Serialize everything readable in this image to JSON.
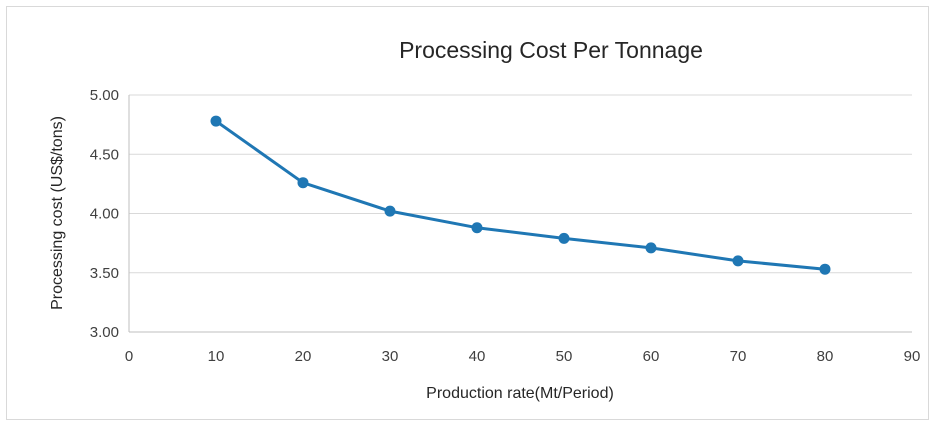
{
  "chart_data": {
    "type": "line",
    "title": "Processing Cost Per Tonnage",
    "xlabel": "Production rate(Mt/Period)",
    "ylabel": "Processing cost  (US$/tons)",
    "xlim": [
      0,
      90
    ],
    "ylim": [
      3.0,
      5.0
    ],
    "x_ticks": [
      "0",
      "10",
      "20",
      "30",
      "40",
      "50",
      "60",
      "70",
      "80",
      "90"
    ],
    "y_ticks": [
      "3.00",
      "3.50",
      "4.00",
      "4.50",
      "5.00"
    ],
    "grid": "horizontal",
    "legend": "none",
    "series": [
      {
        "x": [
          10,
          20,
          30,
          40,
          50,
          60,
          70,
          80
        ],
        "values": [
          4.78,
          4.26,
          4.02,
          3.88,
          3.79,
          3.71,
          3.6,
          3.53
        ],
        "color": "#1f77b4"
      }
    ]
  }
}
